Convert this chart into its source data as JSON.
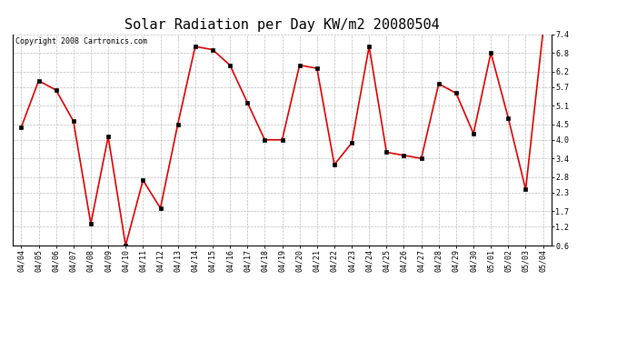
{
  "title": "Solar Radiation per Day KW/m2 20080504",
  "copyright": "Copyright 2008 Cartronics.com",
  "dates": [
    "04/04",
    "04/05",
    "04/06",
    "04/07",
    "04/08",
    "04/09",
    "04/10",
    "04/11",
    "04/12",
    "04/13",
    "04/14",
    "04/15",
    "04/16",
    "04/17",
    "04/18",
    "04/19",
    "04/20",
    "04/21",
    "04/22",
    "04/23",
    "04/24",
    "04/25",
    "04/26",
    "04/27",
    "04/28",
    "04/29",
    "04/30",
    "05/01",
    "05/02",
    "05/03",
    "05/04"
  ],
  "values": [
    4.4,
    5.9,
    5.6,
    4.6,
    1.3,
    4.1,
    0.6,
    2.7,
    1.8,
    4.5,
    7.0,
    6.9,
    6.4,
    5.2,
    4.0,
    4.0,
    6.4,
    6.3,
    3.2,
    3.9,
    7.0,
    3.6,
    3.5,
    3.4,
    5.8,
    5.5,
    4.2,
    6.8,
    4.7,
    2.4,
    7.5
  ],
  "line_color": "#dd0000",
  "marker_color": "#000000",
  "bg_color": "#ffffff",
  "grid_color": "#bbbbbb",
  "yticks": [
    0.6,
    1.2,
    1.7,
    2.3,
    2.8,
    3.4,
    4.0,
    4.5,
    5.1,
    5.7,
    6.2,
    6.8,
    7.4
  ],
  "ylim": [
    0.6,
    7.4
  ],
  "title_fontsize": 11,
  "tick_fontsize": 6,
  "copyright_fontsize": 6
}
